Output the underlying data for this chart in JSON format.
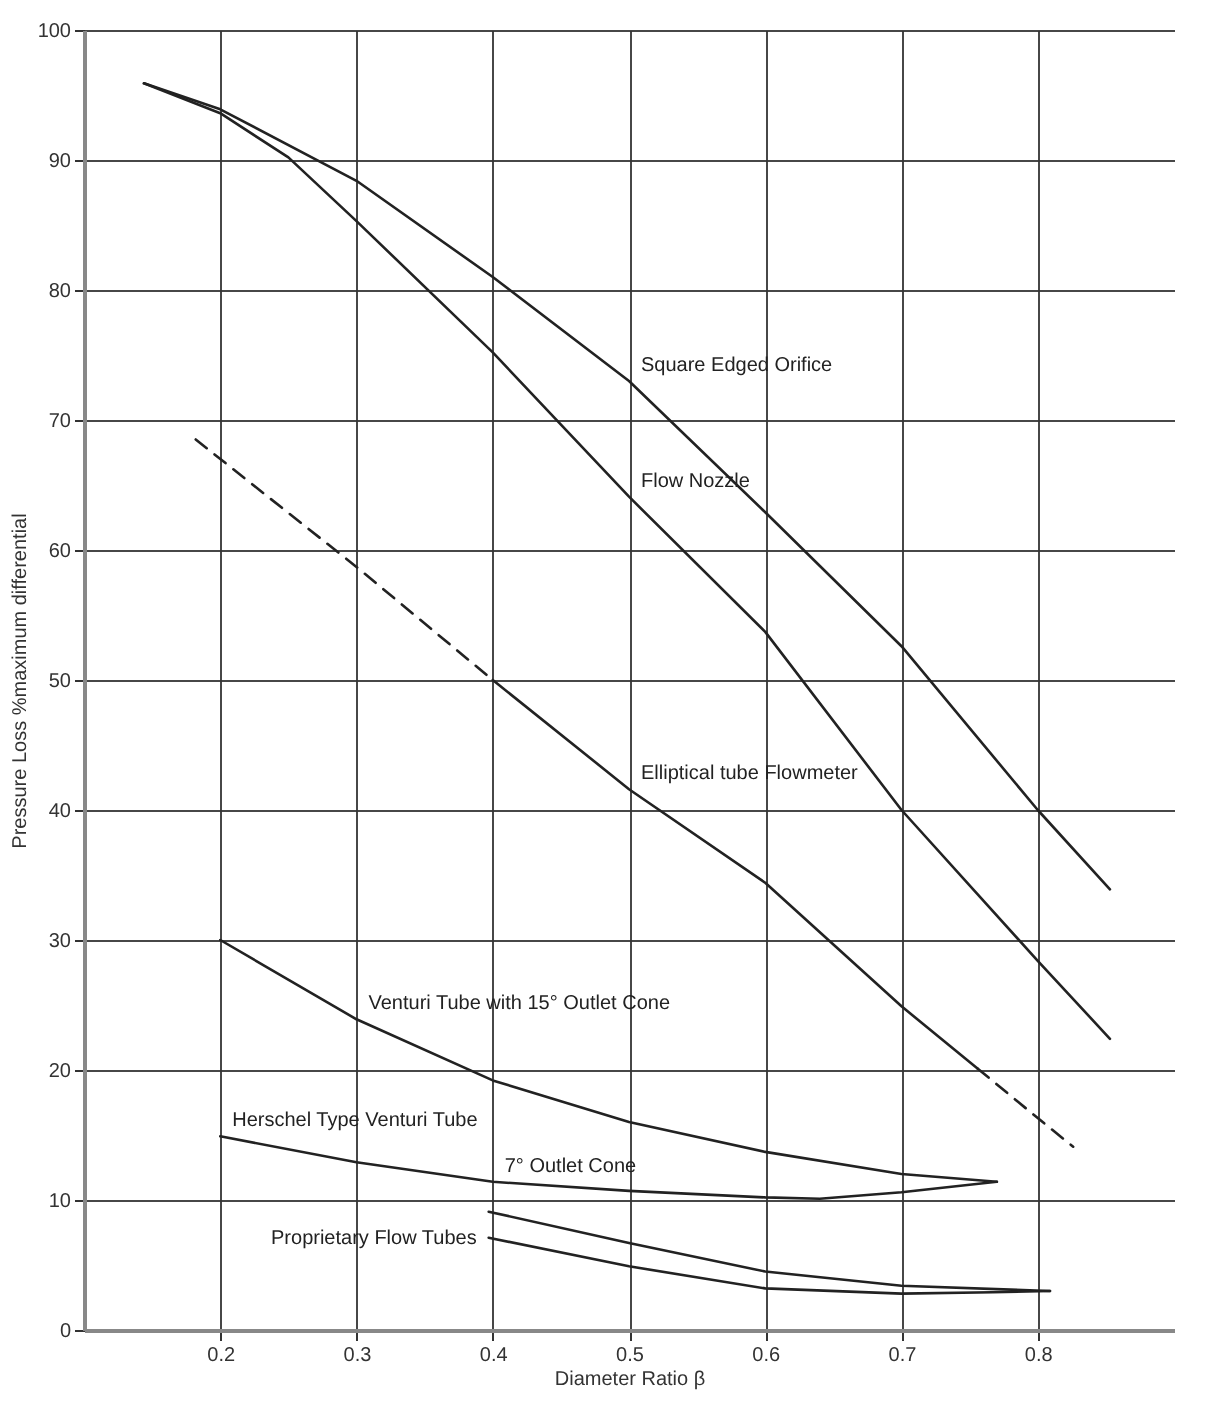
{
  "chart_data": {
    "type": "line",
    "xlabel": "Diameter Ratio β",
    "ylabel": "Pressure Loss %maximum differential",
    "xlim": [
      0.1,
      0.9
    ],
    "xticks": [
      0.2,
      0.3,
      0.4,
      0.5,
      0.6,
      0.7,
      0.8
    ],
    "ylim": [
      0,
      100
    ],
    "yticks": [
      0,
      10,
      20,
      30,
      40,
      50,
      60,
      70,
      80,
      90,
      100
    ],
    "grid": true,
    "marker": "none",
    "series": [
      {
        "color": "#222222",
        "line_style": "solid",
        "x": [
          0.144,
          0.2,
          0.3,
          0.4,
          0.5,
          0.6,
          0.7,
          0.8,
          0.853
        ],
        "values": [
          95.9,
          93.9,
          88.4,
          81.0,
          73.0,
          62.9,
          52.6,
          40.0,
          33.9
        ]
      },
      {
        "color": "#222222",
        "line_style": "solid",
        "x": [
          0.144,
          0.2,
          0.25,
          0.3,
          0.4,
          0.5,
          0.6,
          0.7,
          0.8,
          0.853
        ],
        "values": [
          95.9,
          93.6,
          90.2,
          85.3,
          75.2,
          64.1,
          53.7,
          40.0,
          28.4,
          22.4
        ]
      },
      {
        "color": "#222222",
        "line_style": "dashed",
        "x": [
          0.182,
          0.3,
          0.4
        ],
        "values": [
          68.5,
          58.7,
          50.0
        ]
      },
      {
        "color": "#222222",
        "line_style": "solid",
        "x": [
          0.4,
          0.5,
          0.6,
          0.7,
          0.756
        ],
        "values": [
          50.0,
          41.6,
          34.4,
          24.9,
          20.1
        ]
      },
      {
        "color": "#222222",
        "line_style": "dashed",
        "x": [
          0.756,
          0.8,
          0.826
        ],
        "values": [
          20.1,
          16.3,
          14.1
        ]
      },
      {
        "color": "#222222",
        "line_style": "solid",
        "x": [
          0.2,
          0.3,
          0.4,
          0.5,
          0.6,
          0.7,
          0.77
        ],
        "values": [
          30.0,
          23.9,
          19.2,
          16.0,
          13.7,
          12.0,
          11.4
        ]
      },
      {
        "color": "#222222",
        "line_style": "solid",
        "x": [
          0.2,
          0.3,
          0.4,
          0.5,
          0.6,
          0.64,
          0.7,
          0.77
        ],
        "values": [
          14.9,
          12.9,
          11.4,
          10.7,
          10.2,
          10.1,
          10.6,
          11.4
        ]
      },
      {
        "color": "#222222",
        "line_style": "solid",
        "x": [
          0.397,
          0.5,
          0.6,
          0.7,
          0.809
        ],
        "values": [
          9.1,
          6.7,
          4.5,
          3.4,
          3.0
        ]
      },
      {
        "color": "#222222",
        "line_style": "solid",
        "x": [
          0.397,
          0.5,
          0.6,
          0.7,
          0.767,
          0.809
        ],
        "values": [
          7.1,
          4.9,
          3.2,
          2.8,
          2.9,
          3.0
        ]
      }
    ],
    "annotations": [
      {
        "text": "Square Edged Orifice",
        "x": 0.5,
        "y": 73.0
      },
      {
        "text": "Flow Nozzle",
        "x": 0.5,
        "y": 64.1
      },
      {
        "text": "Elliptical tube Flowmeter",
        "x": 0.5,
        "y": 41.6
      },
      {
        "text": "Venturi Tube with 15° Outlet Cone",
        "x": 0.3,
        "y": 23.9
      },
      {
        "text": "Herschel Type Venturi Tube",
        "x": 0.2,
        "y": 14.9
      },
      {
        "text": "7° Outlet Cone",
        "x": 0.4,
        "y": 11.4
      },
      {
        "text": "Proprietary Flow Tubes",
        "x": 0.397,
        "y": 7.1
      }
    ]
  }
}
